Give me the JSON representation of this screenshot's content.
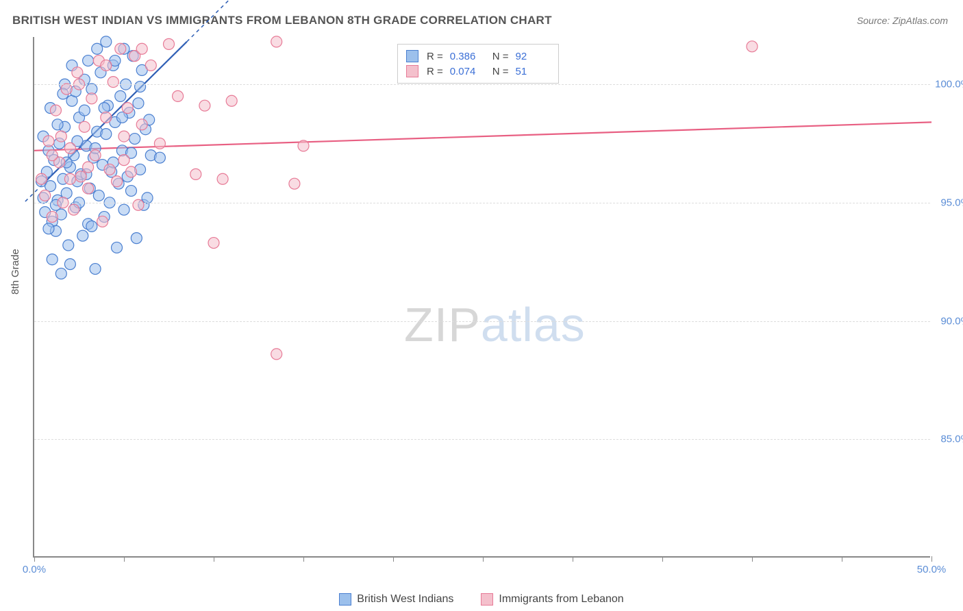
{
  "title": "BRITISH WEST INDIAN VS IMMIGRANTS FROM LEBANON 8TH GRADE CORRELATION CHART",
  "source": "Source: ZipAtlas.com",
  "y_axis_label": "8th Grade",
  "watermark": {
    "part1": "ZIP",
    "part2": "atlas"
  },
  "chart": {
    "type": "scatter",
    "xlim": [
      0,
      50
    ],
    "ylim": [
      80,
      102
    ],
    "x_ticks": [
      0,
      5,
      10,
      15,
      20,
      25,
      30,
      35,
      40,
      45,
      50
    ],
    "x_tick_labels": {
      "0": "0.0%",
      "50": "50.0%"
    },
    "y_ticks": [
      85,
      90,
      95,
      100
    ],
    "y_tick_labels": {
      "85": "85.0%",
      "90": "90.0%",
      "95": "95.0%",
      "100": "100.0%"
    },
    "background_color": "#ffffff",
    "grid_color": "#dddddd",
    "axis_color": "#888888",
    "marker_radius": 8,
    "marker_opacity": 0.55,
    "series": [
      {
        "id": "bwi",
        "name": "British West Indians",
        "fill": "#9cc0ec",
        "stroke": "#4a7fd0",
        "r_value": "0.386",
        "n_value": "92",
        "trend": {
          "x1": 0.5,
          "y1": 95.8,
          "x2": 8.5,
          "y2": 101.8,
          "dash_x2": 8.5,
          "color": "#2f5fb5",
          "width": 2.2
        },
        "points": [
          [
            0.4,
            95.9
          ],
          [
            0.5,
            95.2
          ],
          [
            0.6,
            94.6
          ],
          [
            0.7,
            96.3
          ],
          [
            0.8,
            97.2
          ],
          [
            0.9,
            95.7
          ],
          [
            1.0,
            94.2
          ],
          [
            1.1,
            96.8
          ],
          [
            1.2,
            93.8
          ],
          [
            1.3,
            95.1
          ],
          [
            1.4,
            97.5
          ],
          [
            1.5,
            94.5
          ],
          [
            1.6,
            96.0
          ],
          [
            1.7,
            98.2
          ],
          [
            1.8,
            95.4
          ],
          [
            1.9,
            93.2
          ],
          [
            2.0,
            96.5
          ],
          [
            2.1,
            99.3
          ],
          [
            2.2,
            97.0
          ],
          [
            2.3,
            94.8
          ],
          [
            2.4,
            95.9
          ],
          [
            2.5,
            98.6
          ],
          [
            2.6,
            96.2
          ],
          [
            2.7,
            93.6
          ],
          [
            2.8,
            100.2
          ],
          [
            2.9,
            97.4
          ],
          [
            3.0,
            94.1
          ],
          [
            3.1,
            95.6
          ],
          [
            3.2,
            99.8
          ],
          [
            3.3,
            96.9
          ],
          [
            3.4,
            92.2
          ],
          [
            3.5,
            98.0
          ],
          [
            3.6,
            95.3
          ],
          [
            3.7,
            100.5
          ],
          [
            3.8,
            96.6
          ],
          [
            3.9,
            94.4
          ],
          [
            4.0,
            97.9
          ],
          [
            4.1,
            99.1
          ],
          [
            4.2,
            95.0
          ],
          [
            4.3,
            96.3
          ],
          [
            4.4,
            100.8
          ],
          [
            4.5,
            98.4
          ],
          [
            4.6,
            93.1
          ],
          [
            4.7,
            95.8
          ],
          [
            4.8,
            99.5
          ],
          [
            4.9,
            97.2
          ],
          [
            5.0,
            94.7
          ],
          [
            5.1,
            100.0
          ],
          [
            5.2,
            96.1
          ],
          [
            5.3,
            98.8
          ],
          [
            5.4,
            95.5
          ],
          [
            5.5,
            101.2
          ],
          [
            5.6,
            97.7
          ],
          [
            5.7,
            93.5
          ],
          [
            5.8,
            99.2
          ],
          [
            5.9,
            96.4
          ],
          [
            6.0,
            100.6
          ],
          [
            6.1,
            94.9
          ],
          [
            6.2,
            98.1
          ],
          [
            6.3,
            95.2
          ],
          [
            6.5,
            97.0
          ],
          [
            7.0,
            96.9
          ],
          [
            1.0,
            92.6
          ],
          [
            1.5,
            92.0
          ],
          [
            2.0,
            92.4
          ],
          [
            0.8,
            93.9
          ],
          [
            1.2,
            94.9
          ],
          [
            2.3,
            99.7
          ],
          [
            3.0,
            101.0
          ],
          [
            3.5,
            101.5
          ],
          [
            4.0,
            101.8
          ],
          [
            4.5,
            101.0
          ],
          [
            5.0,
            101.5
          ],
          [
            2.8,
            98.9
          ],
          [
            1.7,
            100.0
          ],
          [
            2.1,
            100.8
          ],
          [
            0.5,
            97.8
          ],
          [
            0.9,
            99.0
          ],
          [
            1.3,
            98.3
          ],
          [
            1.6,
            99.6
          ],
          [
            2.4,
            97.6
          ],
          [
            2.9,
            96.2
          ],
          [
            3.4,
            97.3
          ],
          [
            3.9,
            99.0
          ],
          [
            4.4,
            96.7
          ],
          [
            4.9,
            98.6
          ],
          [
            5.4,
            97.1
          ],
          [
            5.9,
            99.9
          ],
          [
            6.4,
            98.5
          ],
          [
            1.8,
            96.7
          ],
          [
            2.5,
            95.0
          ],
          [
            3.2,
            94.0
          ]
        ]
      },
      {
        "id": "leb",
        "name": "Immigrants from Lebanon",
        "fill": "#f4c0cc",
        "stroke": "#e77a96",
        "r_value": "0.074",
        "n_value": "51",
        "trend": {
          "x1": 0,
          "y1": 97.2,
          "x2": 50,
          "y2": 98.4,
          "color": "#e85f82",
          "width": 2.2
        },
        "points": [
          [
            0.4,
            96.0
          ],
          [
            0.6,
            95.3
          ],
          [
            0.8,
            97.6
          ],
          [
            1.0,
            94.4
          ],
          [
            1.2,
            98.9
          ],
          [
            1.4,
            96.7
          ],
          [
            1.6,
            95.0
          ],
          [
            1.8,
            99.8
          ],
          [
            2.0,
            97.3
          ],
          [
            2.2,
            94.7
          ],
          [
            2.4,
            100.5
          ],
          [
            2.6,
            96.1
          ],
          [
            2.8,
            98.2
          ],
          [
            3.0,
            95.6
          ],
          [
            3.2,
            99.4
          ],
          [
            3.4,
            97.0
          ],
          [
            3.6,
            101.0
          ],
          [
            3.8,
            94.2
          ],
          [
            4.0,
            98.6
          ],
          [
            4.2,
            96.4
          ],
          [
            4.4,
            100.1
          ],
          [
            4.6,
            95.9
          ],
          [
            4.8,
            101.5
          ],
          [
            5.0,
            97.8
          ],
          [
            5.2,
            99.0
          ],
          [
            5.4,
            96.3
          ],
          [
            5.6,
            101.2
          ],
          [
            5.8,
            94.9
          ],
          [
            6.0,
            98.3
          ],
          [
            6.5,
            100.8
          ],
          [
            7.0,
            97.5
          ],
          [
            7.5,
            101.7
          ],
          [
            8.0,
            99.5
          ],
          [
            9.0,
            96.2
          ],
          [
            9.5,
            99.1
          ],
          [
            10.0,
            93.3
          ],
          [
            10.5,
            96.0
          ],
          [
            11.0,
            99.3
          ],
          [
            1.0,
            97.0
          ],
          [
            1.5,
            97.8
          ],
          [
            2.0,
            96.0
          ],
          [
            2.5,
            100.0
          ],
          [
            3.0,
            96.5
          ],
          [
            4.0,
            100.8
          ],
          [
            5.0,
            96.8
          ],
          [
            6.0,
            101.5
          ],
          [
            13.5,
            101.8
          ],
          [
            14.5,
            95.8
          ],
          [
            15.0,
            97.4
          ],
          [
            40.0,
            101.6
          ],
          [
            13.5,
            88.6
          ]
        ]
      }
    ]
  },
  "legend_bottom": [
    {
      "swatch_fill": "#9cc0ec",
      "swatch_stroke": "#4a7fd0",
      "label": "British West Indians"
    },
    {
      "swatch_fill": "#f4c0cc",
      "swatch_stroke": "#e77a96",
      "label": "Immigrants from Lebanon"
    }
  ]
}
